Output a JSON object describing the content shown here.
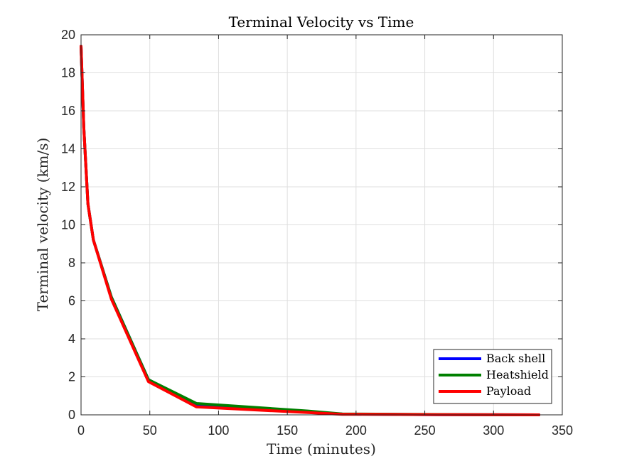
{
  "chart_data": {
    "type": "line",
    "title": "Terminal Velocity vs Time",
    "xlabel": "Time (minutes)",
    "ylabel": "Terminal velocity (km/s)",
    "xlim": [
      0,
      350
    ],
    "ylim": [
      0,
      20
    ],
    "xticks": [
      0,
      50,
      100,
      150,
      200,
      250,
      300,
      350
    ],
    "yticks": [
      0,
      2,
      4,
      6,
      8,
      10,
      12,
      14,
      16,
      18,
      20
    ],
    "grid": true,
    "legend_position": "bottom-right",
    "series": [
      {
        "name": "Back shell",
        "color": "#0000ff",
        "x": [
          0,
          2,
          5,
          9,
          22,
          49,
          84,
          165,
          190,
          260,
          333
        ],
        "y": [
          19.4,
          15.1,
          11.1,
          9.2,
          6.2,
          1.85,
          0.55,
          0.15,
          0.04,
          0.01,
          0.0
        ]
      },
      {
        "name": "Heatshield",
        "color": "#008000",
        "x": [
          0,
          2,
          5,
          9,
          22,
          49,
          84,
          165,
          190,
          260,
          333
        ],
        "y": [
          19.4,
          15.1,
          11.1,
          9.2,
          6.2,
          1.85,
          0.6,
          0.2,
          0.05,
          0.02,
          0.0
        ]
      },
      {
        "name": "Payload",
        "color": "#ff0000",
        "x": [
          0,
          2,
          5,
          9,
          22,
          49,
          84,
          165,
          190,
          260,
          333
        ],
        "y": [
          19.4,
          15.1,
          11.1,
          9.2,
          6.1,
          1.75,
          0.42,
          0.12,
          0.03,
          0.01,
          0.0
        ]
      }
    ]
  }
}
